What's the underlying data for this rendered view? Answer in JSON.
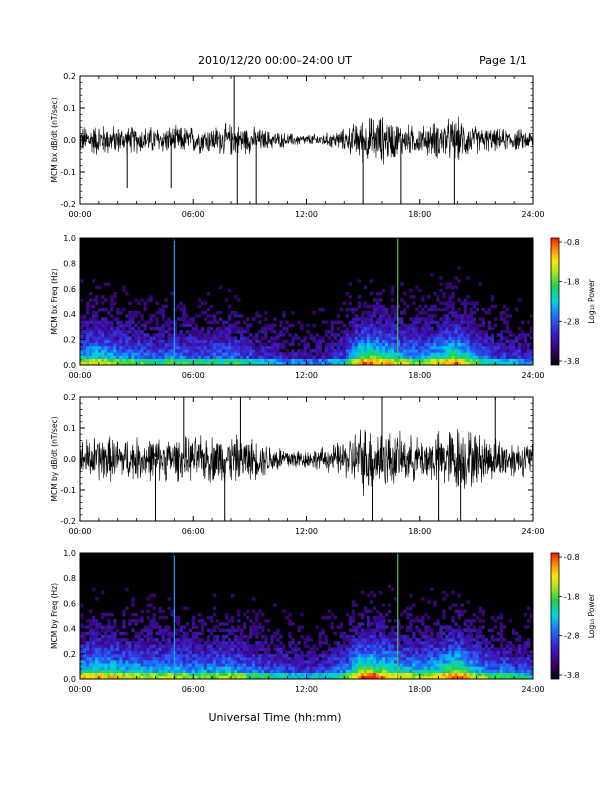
{
  "header": {
    "title": "2010/12/20  00:00–24:00 UT",
    "page": "Page 1/1"
  },
  "footer": {
    "xlabel": "Universal Time (hh:mm)"
  },
  "chart_data": [
    {
      "type": "line",
      "ylabel": "MCM bx dB/dt (nT/sec)",
      "ylim": [
        -0.2,
        0.2
      ],
      "yticks": [
        "0.2",
        "0.1",
        "0.0",
        "-0.1",
        "-0.2"
      ],
      "xlim": [
        "00:00",
        "24:00"
      ],
      "xticks": [
        "00:00",
        "06:00",
        "12:00",
        "18:00",
        "24:00"
      ],
      "envelope_hours": [
        0,
        1,
        2,
        3,
        4,
        5,
        6,
        7,
        8,
        9,
        10,
        11,
        12,
        13,
        14,
        15,
        16,
        17,
        18,
        19,
        20,
        21,
        22,
        23,
        24
      ],
      "envelope_amplitude": [
        0.05,
        0.06,
        0.05,
        0.05,
        0.05,
        0.05,
        0.05,
        0.05,
        0.06,
        0.05,
        0.035,
        0.025,
        0.02,
        0.025,
        0.04,
        0.08,
        0.09,
        0.06,
        0.05,
        0.07,
        0.08,
        0.05,
        0.04,
        0.04,
        0.035
      ],
      "spikes": [
        {
          "x": "02:30",
          "y": -0.15
        },
        {
          "x": "04:50",
          "y": -0.15
        },
        {
          "x": "08:10",
          "y": 0.2
        },
        {
          "x": "08:20",
          "y": -0.2
        },
        {
          "x": "09:20",
          "y": -0.2
        },
        {
          "x": "15:00",
          "y": -0.2
        },
        {
          "x": "17:00",
          "y": -0.2
        },
        {
          "x": "19:50",
          "y": -0.2
        }
      ]
    },
    {
      "type": "heatmap",
      "ylabel": "MCM bx Freq (Hz)",
      "ylim": [
        0.0,
        1.0
      ],
      "yticks": [
        "1.0",
        "0.8",
        "0.6",
        "0.4",
        "0.2",
        "0.0"
      ],
      "xticks": [
        "00:00",
        "06:00",
        "12:00",
        "18:00",
        "24:00"
      ],
      "colorbar": {
        "label": "Log₁₀ Power",
        "ticks": [
          "-0.8",
          "-1.8",
          "-2.8",
          "-3.8"
        ],
        "range": [
          -3.8,
          -0.8
        ]
      },
      "activity_hours": [
        0,
        1,
        2,
        3,
        4,
        5,
        6,
        7,
        8,
        9,
        10,
        11,
        12,
        13,
        14,
        15,
        16,
        17,
        18,
        19,
        20,
        21,
        22,
        23,
        24
      ],
      "activity_level": [
        0.55,
        0.6,
        0.5,
        0.45,
        0.4,
        0.45,
        0.4,
        0.4,
        0.45,
        0.35,
        0.3,
        0.25,
        0.2,
        0.25,
        0.35,
        0.75,
        0.7,
        0.55,
        0.5,
        0.6,
        0.75,
        0.45,
        0.35,
        0.3,
        0.25
      ],
      "vertical_lines": [
        {
          "x": "05:00",
          "color": "#1fa0ff"
        },
        {
          "x": "16:50",
          "color": "#4ac34a"
        }
      ]
    },
    {
      "type": "line",
      "ylabel": "MCM by dB/dt (nT/sec)",
      "ylim": [
        -0.2,
        0.2
      ],
      "yticks": [
        "0.2",
        "0.1",
        "0.0",
        "-0.1",
        "-0.2"
      ],
      "xlim": [
        "00:00",
        "24:00"
      ],
      "xticks": [
        "00:00",
        "06:00",
        "12:00",
        "18:00",
        "24:00"
      ],
      "envelope_hours": [
        0,
        1,
        2,
        3,
        4,
        5,
        6,
        7,
        8,
        9,
        10,
        11,
        12,
        13,
        14,
        15,
        16,
        17,
        18,
        19,
        20,
        21,
        22,
        23,
        24
      ],
      "envelope_amplitude": [
        0.07,
        0.09,
        0.08,
        0.08,
        0.08,
        0.08,
        0.08,
        0.09,
        0.09,
        0.08,
        0.06,
        0.045,
        0.035,
        0.045,
        0.07,
        0.13,
        0.12,
        0.09,
        0.08,
        0.1,
        0.13,
        0.1,
        0.08,
        0.07,
        0.06
      ],
      "spikes": [
        {
          "x": "04:00",
          "y": -0.2
        },
        {
          "x": "05:30",
          "y": 0.2
        },
        {
          "x": "07:40",
          "y": -0.2
        },
        {
          "x": "08:30",
          "y": 0.2
        },
        {
          "x": "15:30",
          "y": -0.2
        },
        {
          "x": "16:00",
          "y": 0.2
        },
        {
          "x": "19:00",
          "y": -0.2
        },
        {
          "x": "20:10",
          "y": -0.2
        },
        {
          "x": "22:00",
          "y": 0.2
        }
      ]
    },
    {
      "type": "heatmap",
      "ylabel": "MCM by Freq (Hz)",
      "ylim": [
        0.0,
        1.0
      ],
      "yticks": [
        "1.0",
        "0.8",
        "0.6",
        "0.4",
        "0.2",
        "0.0"
      ],
      "xticks": [
        "00:00",
        "06:00",
        "12:00",
        "18:00",
        "24:00"
      ],
      "colorbar": {
        "label": "Log₁₀ Power",
        "ticks": [
          "-0.8",
          "-1.8",
          "-2.8",
          "-3.8"
        ],
        "range": [
          -3.8,
          -0.8
        ]
      },
      "activity_hours": [
        0,
        1,
        2,
        3,
        4,
        5,
        6,
        7,
        8,
        9,
        10,
        11,
        12,
        13,
        14,
        15,
        16,
        17,
        18,
        19,
        20,
        21,
        22,
        23,
        24
      ],
      "activity_level": [
        0.6,
        0.65,
        0.6,
        0.55,
        0.55,
        0.55,
        0.5,
        0.5,
        0.55,
        0.45,
        0.4,
        0.35,
        0.3,
        0.35,
        0.45,
        0.8,
        0.75,
        0.6,
        0.55,
        0.65,
        0.8,
        0.55,
        0.45,
        0.4,
        0.35
      ],
      "vertical_lines": [
        {
          "x": "05:00",
          "color": "#1fa0ff"
        },
        {
          "x": "16:50",
          "color": "#4ac34a"
        }
      ]
    }
  ]
}
